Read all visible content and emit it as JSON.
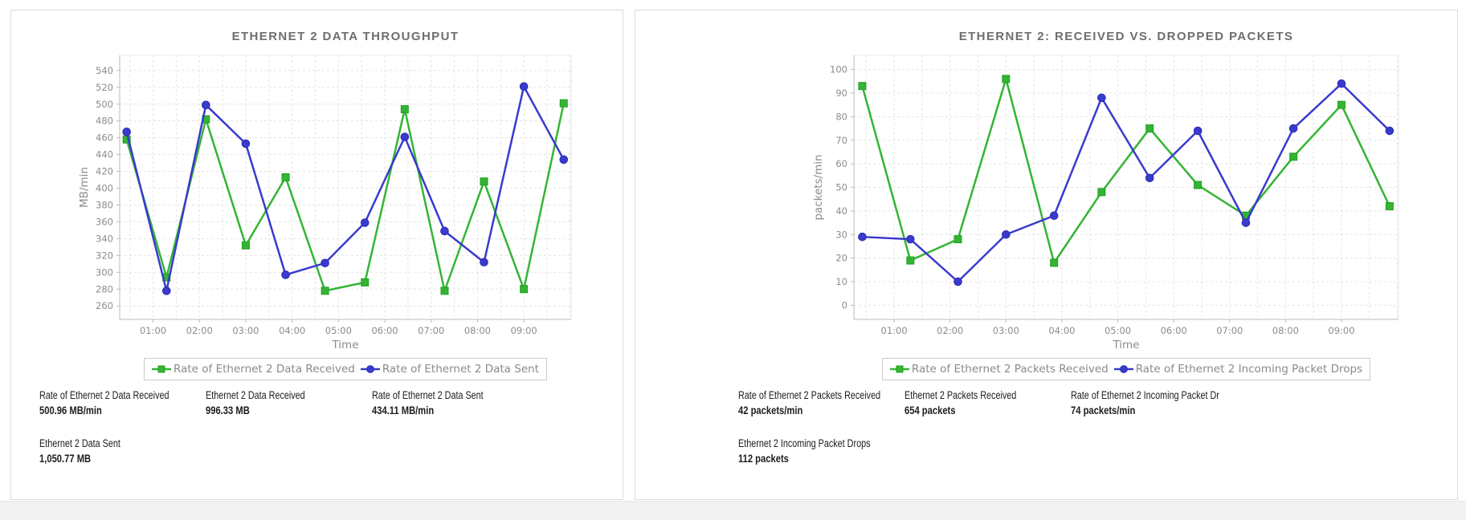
{
  "ui": {
    "background": "#ffffff",
    "panel_background": "#ffffff",
    "panel_border": "#dcdcdc",
    "bottom_strip_color": "#f2f2f2",
    "grid_color": "#e4e4e4",
    "plot_border_color": "#e9e9e9",
    "axis_line_color": "#bbbbbb",
    "axis_text_color": "#8c8c8c",
    "title_color": "#6e6e6e",
    "legend_border_color": "#cccccc",
    "legend_text_color": "#8a8a8a",
    "stat_text_color": "#1d1d1d",
    "series_green": "#33b533",
    "series_blue": "#3a3acd"
  },
  "chart_data": [
    {
      "type": "line",
      "title": "ETHERNET 2 DATA THROUGHPUT",
      "xlabel": "Time",
      "ylabel": "MB/min",
      "x": [
        0.43,
        1.29,
        2.14,
        3.0,
        3.86,
        4.71,
        5.57,
        6.43,
        7.29,
        8.14,
        9.0,
        9.86
      ],
      "x_ticks": [
        {
          "t": 1,
          "label": "01:00"
        },
        {
          "t": 2,
          "label": "02:00"
        },
        {
          "t": 3,
          "label": "03:00"
        },
        {
          "t": 4,
          "label": "04:00"
        },
        {
          "t": 5,
          "label": "05:00"
        },
        {
          "t": 6,
          "label": "06:00"
        },
        {
          "t": 7,
          "label": "07:00"
        },
        {
          "t": 8,
          "label": "08:00"
        },
        {
          "t": 9,
          "label": "09:00"
        }
      ],
      "xlim": [
        0.28,
        10.02
      ],
      "ylim": [
        244,
        558
      ],
      "yticks": [
        260,
        280,
        300,
        320,
        340,
        360,
        380,
        400,
        420,
        440,
        460,
        480,
        500,
        520,
        540
      ],
      "grid": true,
      "legend_position": "bottom",
      "series": [
        {
          "name": "Rate of Ethernet 2 Data Received",
          "color": "#33b533",
          "marker_stroke": "#22a022",
          "marker": "square",
          "values": [
            458,
            294,
            482,
            332,
            413,
            278,
            288,
            494,
            278,
            408,
            280,
            501
          ]
        },
        {
          "name": "Rate of Ethernet 2 Data Sent",
          "color": "#3a3acd",
          "marker_stroke": "#2b2bb5",
          "marker": "circle",
          "values": [
            467,
            278,
            499,
            453,
            297,
            311,
            359,
            461,
            349,
            312,
            521,
            434
          ]
        }
      ]
    },
    {
      "type": "line",
      "title": "ETHERNET 2: RECEIVED VS. DROPPED PACKETS",
      "xlabel": "Time",
      "ylabel": "packets/min",
      "x": [
        0.43,
        1.29,
        2.14,
        3.0,
        3.86,
        4.71,
        5.57,
        6.43,
        7.29,
        8.14,
        9.0,
        9.86
      ],
      "x_ticks": [
        {
          "t": 1,
          "label": "01:00"
        },
        {
          "t": 2,
          "label": "02:00"
        },
        {
          "t": 3,
          "label": "03:00"
        },
        {
          "t": 4,
          "label": "04:00"
        },
        {
          "t": 5,
          "label": "05:00"
        },
        {
          "t": 6,
          "label": "06:00"
        },
        {
          "t": 7,
          "label": "07:00"
        },
        {
          "t": 8,
          "label": "08:00"
        },
        {
          "t": 9,
          "label": "09:00"
        }
      ],
      "xlim": [
        0.28,
        10.02
      ],
      "ylim": [
        -6,
        106
      ],
      "yticks": [
        0,
        10,
        20,
        30,
        40,
        50,
        60,
        70,
        80,
        90,
        100
      ],
      "grid": true,
      "legend_position": "bottom",
      "series": [
        {
          "name": "Rate of Ethernet 2 Packets Received",
          "color": "#33b533",
          "marker_stroke": "#22a022",
          "marker": "square",
          "values": [
            93,
            19,
            28,
            96,
            18,
            48,
            75,
            51,
            38,
            63,
            85,
            42
          ]
        },
        {
          "name": "Rate of Ethernet 2 Incoming Packet Drops",
          "color": "#3a3acd",
          "marker_stroke": "#2b2bb5",
          "marker": "circle",
          "values": [
            29,
            28,
            10,
            30,
            38,
            88,
            54,
            74,
            35,
            75,
            94,
            74
          ]
        }
      ]
    }
  ],
  "panels": [
    {
      "stats": [
        {
          "label": "Rate of Ethernet 2 Data Received",
          "value": "500.96 MB/min"
        },
        {
          "label": "Ethernet 2 Data Received",
          "value": "996.33 MB"
        },
        {
          "label": "Rate of Ethernet 2 Data Sent",
          "value": "434.11 MB/min"
        },
        {
          "label": "Ethernet 2 Data Sent",
          "value": "1,050.77 MB"
        }
      ]
    },
    {
      "stats": [
        {
          "label": "Rate of Ethernet 2 Packets Received",
          "value": "42 packets/min"
        },
        {
          "label": "Ethernet 2 Packets Received",
          "value": "654 packets"
        },
        {
          "label": "Rate of Ethernet 2 Incoming Packet Dr",
          "value": "74 packets/min"
        },
        {
          "label": "Ethernet 2 Incoming Packet Drops",
          "value": "112 packets"
        }
      ]
    }
  ]
}
